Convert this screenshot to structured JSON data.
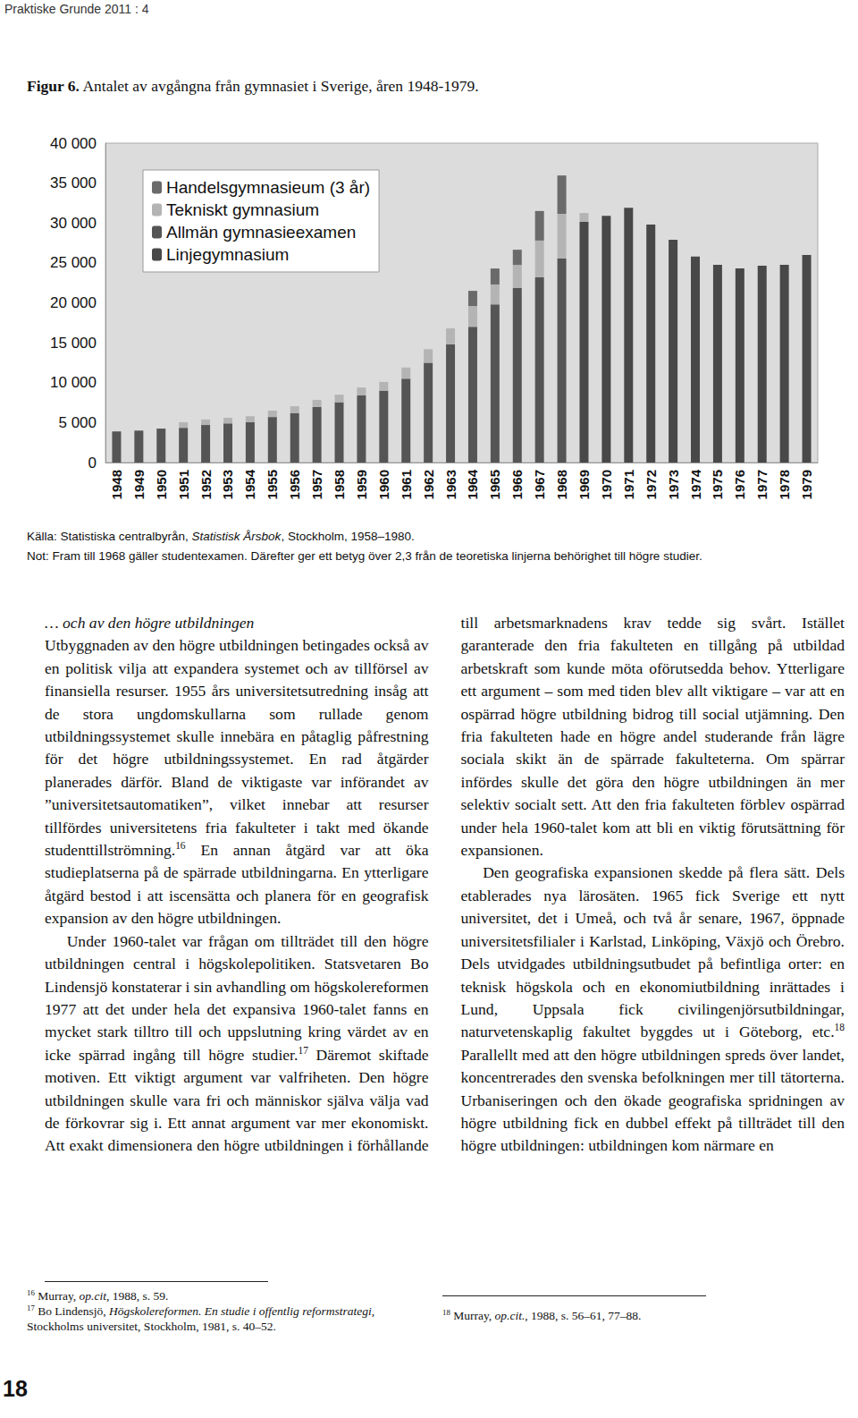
{
  "header": "Praktiske Grunde 2011 : 4",
  "figure": {
    "label": "Figur 6.",
    "caption": "Antalet av avgångna från gymnasiet i Sverige, åren 1948-1979.",
    "source": [
      {
        "text": "Källa: Statistiska centralbyrån, "
      },
      {
        "text": "Statistisk Årsbok",
        "italic": true
      },
      {
        "text": ", Stockholm, 1958–1980."
      }
    ],
    "note": "Not: Fram till 1968 gäller studentexamen. Därefter ger ett betyg över 2,3 från de teoretiska linjerna behörighet till högre studier."
  },
  "chart_data": {
    "type": "bar",
    "stacked": true,
    "grid": false,
    "legend": "upper left",
    "categories": [
      "1948",
      "1949",
      "1950",
      "1951",
      "1952",
      "1953",
      "1954",
      "1955",
      "1956",
      "1957",
      "1958",
      "1959",
      "1960",
      "1961",
      "1962",
      "1963",
      "1964",
      "1965",
      "1966",
      "1967",
      "1968",
      "1969",
      "1970",
      "1971",
      "1972",
      "1973",
      "1974",
      "1975",
      "1976",
      "1977",
      "1978",
      "1979"
    ],
    "ylim": [
      0,
      40000
    ],
    "yticks": [
      0,
      {
        "value": 5000,
        "label": "5 000"
      },
      {
        "value": 10000,
        "label": "10 000"
      },
      {
        "value": 15000,
        "label": "15 000"
      },
      {
        "value": 20000,
        "label": "20 000"
      },
      {
        "value": 25000,
        "label": "25 000"
      },
      {
        "value": 30000,
        "label": "30 000"
      },
      {
        "value": 35000,
        "label": "35 000"
      },
      {
        "value": 40000,
        "label": "40 000"
      }
    ],
    "series": [
      {
        "name": "Handelsgymnasieum (3 år)",
        "color": "#6a6a6a",
        "values": [
          null,
          null,
          null,
          null,
          null,
          null,
          null,
          null,
          null,
          null,
          null,
          null,
          null,
          null,
          null,
          null,
          1900,
          2000,
          1900,
          3700,
          4800,
          null,
          null,
          null,
          null,
          null,
          null,
          null,
          null,
          null,
          null,
          null
        ]
      },
      {
        "name": "Tekniskt gymnasium",
        "color": "#b4b4b4",
        "values": [
          null,
          null,
          null,
          700,
          700,
          700,
          750,
          800,
          850,
          900,
          950,
          1000,
          1100,
          1400,
          1700,
          2000,
          2600,
          2500,
          2900,
          4600,
          5600,
          1100,
          null,
          null,
          null,
          null,
          null,
          null,
          null,
          null,
          null,
          null
        ]
      },
      {
        "name": "Allmän gymnasieexamen",
        "color": "#555555",
        "values": [
          3900,
          4000,
          4250,
          4350,
          4700,
          4900,
          5050,
          5700,
          6200,
          6950,
          7550,
          8400,
          9000,
          10500,
          12500,
          14800,
          17000,
          19800,
          21850,
          23200,
          25550,
          null,
          null,
          null,
          null,
          null,
          null,
          null,
          null,
          null,
          null,
          null
        ]
      },
      {
        "name": "Linjegymnasium",
        "color": "#484848",
        "values": [
          null,
          null,
          null,
          null,
          null,
          null,
          null,
          null,
          null,
          null,
          null,
          null,
          null,
          null,
          null,
          null,
          null,
          null,
          null,
          null,
          null,
          30150,
          30900,
          31900,
          29800,
          27900,
          25800,
          24750,
          24300,
          24650,
          24750,
          26000
        ]
      }
    ]
  },
  "body": {
    "heading": "… och av den högre utbildningen",
    "paragraphs": [
      [
        {
          "text": "Utbyggnaden av den högre utbildningen betingades också av en politisk vilja att expandera systemet och av tillförsel av finansiella resurser. 1955 års universitetsutredning insåg att de stora ungdomskullarna som rullade genom utbildningssystemet skulle innebära en påtaglig påfrestning för det högre utbildningssystemet. En rad åtgärder planerades därför. Bland de viktigaste var införandet av ”universitetsautomatiken”, vilket innebar att resurser tillfördes universitetens fria fakulteter i takt med ökande studenttillströmning."
        },
        {
          "sup": "16"
        },
        {
          "text": " En annan åtgärd var att öka studieplatserna på de spärrade utbildningarna. En ytterligare åtgärd bestod i att iscensätta och planera för en geografisk expansion av den högre utbildningen."
        }
      ],
      [
        {
          "text": "Under 1960-talet var frågan om tillträdet till den högre utbildningen central i högskolepolitiken. Statsvetaren Bo Lindensjö konstaterar i sin avhandling om högskolereformen 1977 att det under hela det expansiva 1960-talet fanns en mycket stark tilltro till och uppslutning kring värdet av en icke spärrad ingång till högre studier."
        },
        {
          "sup": "17"
        },
        {
          "text": " Däremot skiftade motiven. Ett viktigt argument var valfriheten. Den högre utbildningen skulle vara fri och människor själva välja vad de förkovrar sig i. Ett annat argument var mer ekonomiskt. Att exakt dimensionera den högre utbildningen i förhållande till arbetsmarknadens krav tedde sig svårt. Istället garanterade den fria fakulteten en tillgång på utbildad arbetskraft som kunde möta oförutsedda behov. Ytterligare ett argument – som med tiden blev allt viktigare – var att en ospärrad högre utbildning bidrog till social utjämning. Den fria fakulteten hade en högre andel studerande från lägre sociala skikt än de spärrade fakulteterna. Om spärrar infördes skulle det göra den högre utbildningen än mer selektiv socialt sett. Att den fria fakulteten förblev ospärrad under hela 1960-talet kom att bli en viktig förutsättning för expansionen."
        }
      ],
      [
        {
          "text": "Den geografiska expansionen skedde på flera sätt. Dels etablerades nya lärosäten. 1965 fick Sverige ett nytt universitet, det i Umeå, och två år senare, 1967, öppnade universitetsfilialer i Karlstad, Linköping, Växjö och Örebro. Dels utvidgades utbildningsutbudet på befintliga orter: en teknisk högskola och en ekonomiutbildning inrättades i Lund, Uppsala fick civilingenjörsutbildningar, naturvetenskaplig fakultet byggdes ut i Göteborg, etc."
        },
        {
          "sup": "18"
        },
        {
          "text": " Parallellt med att den högre utbildningen spreds över landet, koncentrerades den svenska befolkningen mer till tätorterna. Urbaniseringen och den ökade geografiska spridningen av högre utbildning fick en dubbel effekt på tillträdet till den högre utbildningen: utbildningen kom närmare en"
        }
      ]
    ]
  },
  "footnotes": {
    "left": [
      [
        {
          "sup": "16"
        },
        {
          "text": " Murray, "
        },
        {
          "text": "op.cit",
          "italic": true
        },
        {
          "text": ", 1988, s. 59."
        }
      ],
      [
        {
          "sup": "17"
        },
        {
          "text": " Bo Lindensjö, "
        },
        {
          "text": "Högskolereformen. En studie i offentlig reformstrategi",
          "italic": true
        },
        {
          "text": ", Stockholms universitet, Stockholm, 1981, s. 40–52."
        }
      ]
    ],
    "right": [
      [
        {
          "sup": "18"
        },
        {
          "text": " Murray, "
        },
        {
          "text": "op.cit.",
          "italic": true
        },
        {
          "text": ", 1988, s. 56–61, 77–88."
        }
      ]
    ]
  },
  "page_number": "18"
}
